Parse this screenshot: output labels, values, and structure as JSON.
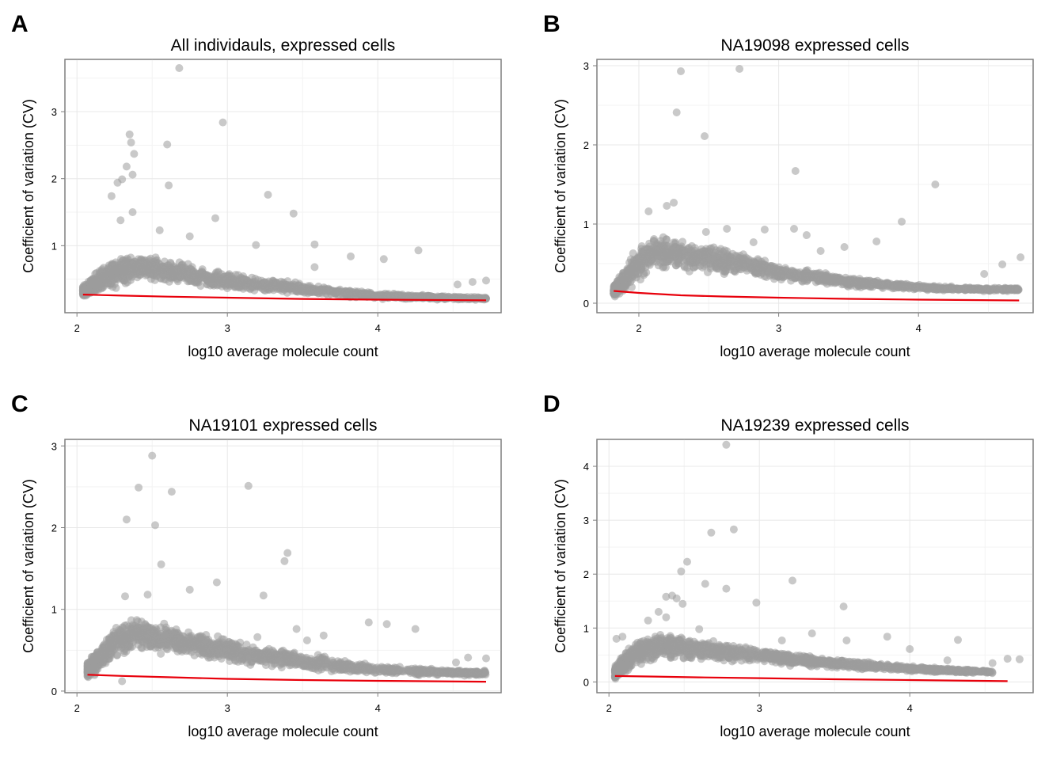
{
  "chart_data": [
    {
      "type": "scatter",
      "panel": "A",
      "title": "All individauls, expressed cells",
      "xlabel": "log10 average molecule count",
      "ylabel": "Coefficient of variation (CV)",
      "xlim": [
        1.92,
        4.82
      ],
      "ylim": [
        0.0,
        3.78
      ],
      "xticks": [
        2,
        3,
        4
      ],
      "yticks": [
        1,
        2,
        3
      ],
      "grid": true,
      "point_color": "#9c9c9c",
      "fit_color": "#e8000b",
      "cloud": {
        "x_start": 2.04,
        "x_peak": 2.4,
        "x_end": 4.72,
        "lower": [
          [
            2.04,
            0.22
          ],
          [
            2.1,
            0.2
          ],
          [
            2.2,
            0.28
          ],
          [
            2.4,
            0.48
          ],
          [
            3.0,
            0.32
          ],
          [
            4.0,
            0.2
          ],
          [
            4.72,
            0.18
          ]
        ],
        "upper": [
          [
            2.04,
            0.42
          ],
          [
            2.1,
            0.6
          ],
          [
            2.2,
            0.82
          ],
          [
            2.4,
            0.92
          ],
          [
            3.0,
            0.62
          ],
          [
            4.0,
            0.3
          ],
          [
            4.72,
            0.24
          ]
        ]
      },
      "outliers": [
        [
          2.68,
          3.65
        ],
        [
          2.97,
          2.84
        ],
        [
          2.35,
          2.66
        ],
        [
          2.36,
          2.54
        ],
        [
          2.6,
          2.51
        ],
        [
          2.38,
          2.37
        ],
        [
          2.33,
          2.18
        ],
        [
          2.37,
          2.06
        ],
        [
          2.3,
          1.99
        ],
        [
          2.27,
          1.94
        ],
        [
          2.61,
          1.9
        ],
        [
          3.27,
          1.76
        ],
        [
          2.23,
          1.74
        ],
        [
          3.44,
          1.48
        ],
        [
          2.37,
          1.5
        ],
        [
          2.92,
          1.41
        ],
        [
          2.29,
          1.38
        ],
        [
          2.55,
          1.23
        ],
        [
          2.75,
          1.14
        ],
        [
          3.19,
          1.01
        ],
        [
          3.58,
          1.02
        ],
        [
          3.82,
          0.84
        ],
        [
          4.04,
          0.8
        ],
        [
          4.27,
          0.93
        ],
        [
          3.58,
          0.68
        ],
        [
          4.53,
          0.42
        ],
        [
          4.63,
          0.46
        ],
        [
          4.72,
          0.48
        ]
      ],
      "fit": [
        [
          2.04,
          0.27
        ],
        [
          2.3,
          0.255
        ],
        [
          2.6,
          0.24
        ],
        [
          3.0,
          0.225
        ],
        [
          3.5,
          0.205
        ],
        [
          4.0,
          0.195
        ],
        [
          4.72,
          0.185
        ]
      ]
    },
    {
      "type": "scatter",
      "panel": "B",
      "title": "NA19098 expressed cells",
      "xlabel": "log10 average molecule count",
      "ylabel": "Coefficient of variation (CV)",
      "xlim": [
        1.7,
        4.82
      ],
      "ylim": [
        -0.12,
        3.08
      ],
      "xticks": [
        2,
        3,
        4
      ],
      "yticks": [
        0,
        1,
        2,
        3
      ],
      "grid": true,
      "point_color": "#9c9c9c",
      "fit_color": "#e8000b",
      "cloud": {
        "x_start": 1.82,
        "x_peak": 2.1,
        "x_end": 4.72,
        "lower": [
          [
            1.82,
            0.06
          ],
          [
            1.9,
            0.12
          ],
          [
            2.0,
            0.25
          ],
          [
            2.1,
            0.36
          ],
          [
            2.5,
            0.38
          ],
          [
            3.0,
            0.28
          ],
          [
            3.5,
            0.2
          ],
          [
            4.0,
            0.16
          ],
          [
            4.4,
            0.15
          ]
        ],
        "upper": [
          [
            1.82,
            0.25
          ],
          [
            1.9,
            0.48
          ],
          [
            2.0,
            0.76
          ],
          [
            2.1,
            0.9
          ],
          [
            2.5,
            0.78
          ],
          [
            3.0,
            0.5
          ],
          [
            3.5,
            0.34
          ],
          [
            4.0,
            0.24
          ],
          [
            4.4,
            0.2
          ]
        ]
      },
      "outliers": [
        [
          2.72,
          2.96
        ],
        [
          2.3,
          2.93
        ],
        [
          2.27,
          2.41
        ],
        [
          2.47,
          2.11
        ],
        [
          3.12,
          1.67
        ],
        [
          4.12,
          1.5
        ],
        [
          2.25,
          1.27
        ],
        [
          2.2,
          1.23
        ],
        [
          2.07,
          1.16
        ],
        [
          3.88,
          1.03
        ],
        [
          2.48,
          0.9
        ],
        [
          2.63,
          0.94
        ],
        [
          2.9,
          0.93
        ],
        [
          3.11,
          0.94
        ],
        [
          3.2,
          0.86
        ],
        [
          2.82,
          0.77
        ],
        [
          3.7,
          0.78
        ],
        [
          3.3,
          0.66
        ],
        [
          3.47,
          0.71
        ],
        [
          2.7,
          0.59
        ],
        [
          4.47,
          0.37
        ],
        [
          4.73,
          0.58
        ],
        [
          4.6,
          0.49
        ]
      ],
      "fit": [
        [
          1.82,
          0.155
        ],
        [
          2.0,
          0.13
        ],
        [
          2.3,
          0.1
        ],
        [
          2.6,
          0.085
        ],
        [
          3.0,
          0.07
        ],
        [
          3.5,
          0.055
        ],
        [
          4.0,
          0.045
        ],
        [
          4.72,
          0.035
        ]
      ]
    },
    {
      "type": "scatter",
      "panel": "C",
      "title": "NA19101 expressed cells",
      "xlabel": "log10 average molecule count",
      "ylabel": "Coefficient of variation (CV)",
      "xlim": [
        1.92,
        4.82
      ],
      "ylim": [
        -0.02,
        3.08
      ],
      "xticks": [
        2,
        3,
        4
      ],
      "yticks": [
        0,
        1,
        2,
        3
      ],
      "grid": true,
      "point_color": "#9c9c9c",
      "fit_color": "#e8000b",
      "cloud": {
        "x_start": 2.07,
        "x_peak": 2.4,
        "x_end": 4.72,
        "lower": [
          [
            2.07,
            0.14
          ],
          [
            2.15,
            0.22
          ],
          [
            2.25,
            0.36
          ],
          [
            2.4,
            0.46
          ],
          [
            3.0,
            0.32
          ],
          [
            3.5,
            0.24
          ],
          [
            4.0,
            0.2
          ],
          [
            4.6,
            0.18
          ]
        ],
        "upper": [
          [
            2.07,
            0.38
          ],
          [
            2.15,
            0.58
          ],
          [
            2.25,
            0.82
          ],
          [
            2.4,
            0.95
          ],
          [
            3.0,
            0.66
          ],
          [
            3.5,
            0.48
          ],
          [
            4.0,
            0.32
          ],
          [
            4.6,
            0.26
          ]
        ]
      },
      "outliers": [
        [
          2.5,
          2.88
        ],
        [
          3.14,
          2.51
        ],
        [
          2.41,
          2.49
        ],
        [
          2.63,
          2.44
        ],
        [
          2.33,
          2.1
        ],
        [
          2.52,
          2.03
        ],
        [
          3.4,
          1.69
        ],
        [
          3.38,
          1.59
        ],
        [
          2.56,
          1.55
        ],
        [
          2.93,
          1.33
        ],
        [
          2.75,
          1.24
        ],
        [
          3.24,
          1.17
        ],
        [
          2.47,
          1.18
        ],
        [
          2.32,
          1.16
        ],
        [
          3.46,
          0.76
        ],
        [
          3.64,
          0.68
        ],
        [
          3.94,
          0.84
        ],
        [
          4.06,
          0.82
        ],
        [
          4.25,
          0.76
        ],
        [
          3.2,
          0.66
        ],
        [
          3.53,
          0.62
        ],
        [
          4.52,
          0.35
        ],
        [
          4.6,
          0.41
        ],
        [
          4.72,
          0.4
        ],
        [
          2.3,
          0.12
        ]
      ],
      "fit": [
        [
          2.07,
          0.2
        ],
        [
          2.3,
          0.185
        ],
        [
          2.6,
          0.17
        ],
        [
          3.0,
          0.15
        ],
        [
          3.5,
          0.135
        ],
        [
          4.0,
          0.125
        ],
        [
          4.72,
          0.115
        ]
      ]
    },
    {
      "type": "scatter",
      "panel": "D",
      "title": "NA19239 expressed cells",
      "xlabel": "log10 average molecule count",
      "ylabel": "Coefficient of variation (CV)",
      "xlim": [
        1.92,
        4.82
      ],
      "ylim": [
        -0.2,
        4.5
      ],
      "xticks": [
        2,
        3,
        4
      ],
      "yticks": [
        0,
        1,
        2,
        3,
        4
      ],
      "grid": true,
      "point_color": "#9c9c9c",
      "fit_color": "#e8000b",
      "cloud": {
        "x_start": 2.04,
        "x_peak": 2.35,
        "x_end": 4.55,
        "lower": [
          [
            2.04,
            0.02
          ],
          [
            2.1,
            0.1
          ],
          [
            2.2,
            0.3
          ],
          [
            2.35,
            0.4
          ],
          [
            3.0,
            0.32
          ],
          [
            3.5,
            0.24
          ],
          [
            4.0,
            0.18
          ],
          [
            4.55,
            0.15
          ]
        ],
        "upper": [
          [
            2.04,
            0.32
          ],
          [
            2.1,
            0.58
          ],
          [
            2.2,
            0.8
          ],
          [
            2.35,
            0.95
          ],
          [
            3.0,
            0.66
          ],
          [
            3.5,
            0.44
          ],
          [
            4.0,
            0.3
          ],
          [
            4.55,
            0.22
          ]
        ]
      },
      "outliers": [
        [
          2.78,
          4.4
        ],
        [
          2.83,
          2.83
        ],
        [
          2.68,
          2.77
        ],
        [
          2.52,
          2.23
        ],
        [
          2.48,
          2.05
        ],
        [
          3.22,
          1.88
        ],
        [
          2.64,
          1.82
        ],
        [
          2.78,
          1.73
        ],
        [
          2.42,
          1.6
        ],
        [
          2.38,
          1.58
        ],
        [
          2.45,
          1.55
        ],
        [
          2.49,
          1.45
        ],
        [
          2.98,
          1.47
        ],
        [
          3.56,
          1.4
        ],
        [
          2.33,
          1.3
        ],
        [
          2.38,
          1.2
        ],
        [
          2.26,
          1.14
        ],
        [
          2.6,
          0.98
        ],
        [
          3.35,
          0.9
        ],
        [
          3.85,
          0.84
        ],
        [
          3.58,
          0.77
        ],
        [
          4.32,
          0.78
        ],
        [
          3.15,
          0.77
        ],
        [
          4.0,
          0.61
        ],
        [
          4.25,
          0.4
        ],
        [
          4.55,
          0.35
        ],
        [
          4.65,
          0.43
        ],
        [
          4.73,
          0.42
        ],
        [
          2.05,
          0.8
        ],
        [
          2.09,
          0.84
        ]
      ],
      "fit": [
        [
          2.04,
          0.11
        ],
        [
          2.3,
          0.1
        ],
        [
          2.6,
          0.085
        ],
        [
          3.0,
          0.07
        ],
        [
          3.5,
          0.05
        ],
        [
          4.0,
          0.035
        ],
        [
          4.65,
          0.015
        ]
      ]
    }
  ]
}
